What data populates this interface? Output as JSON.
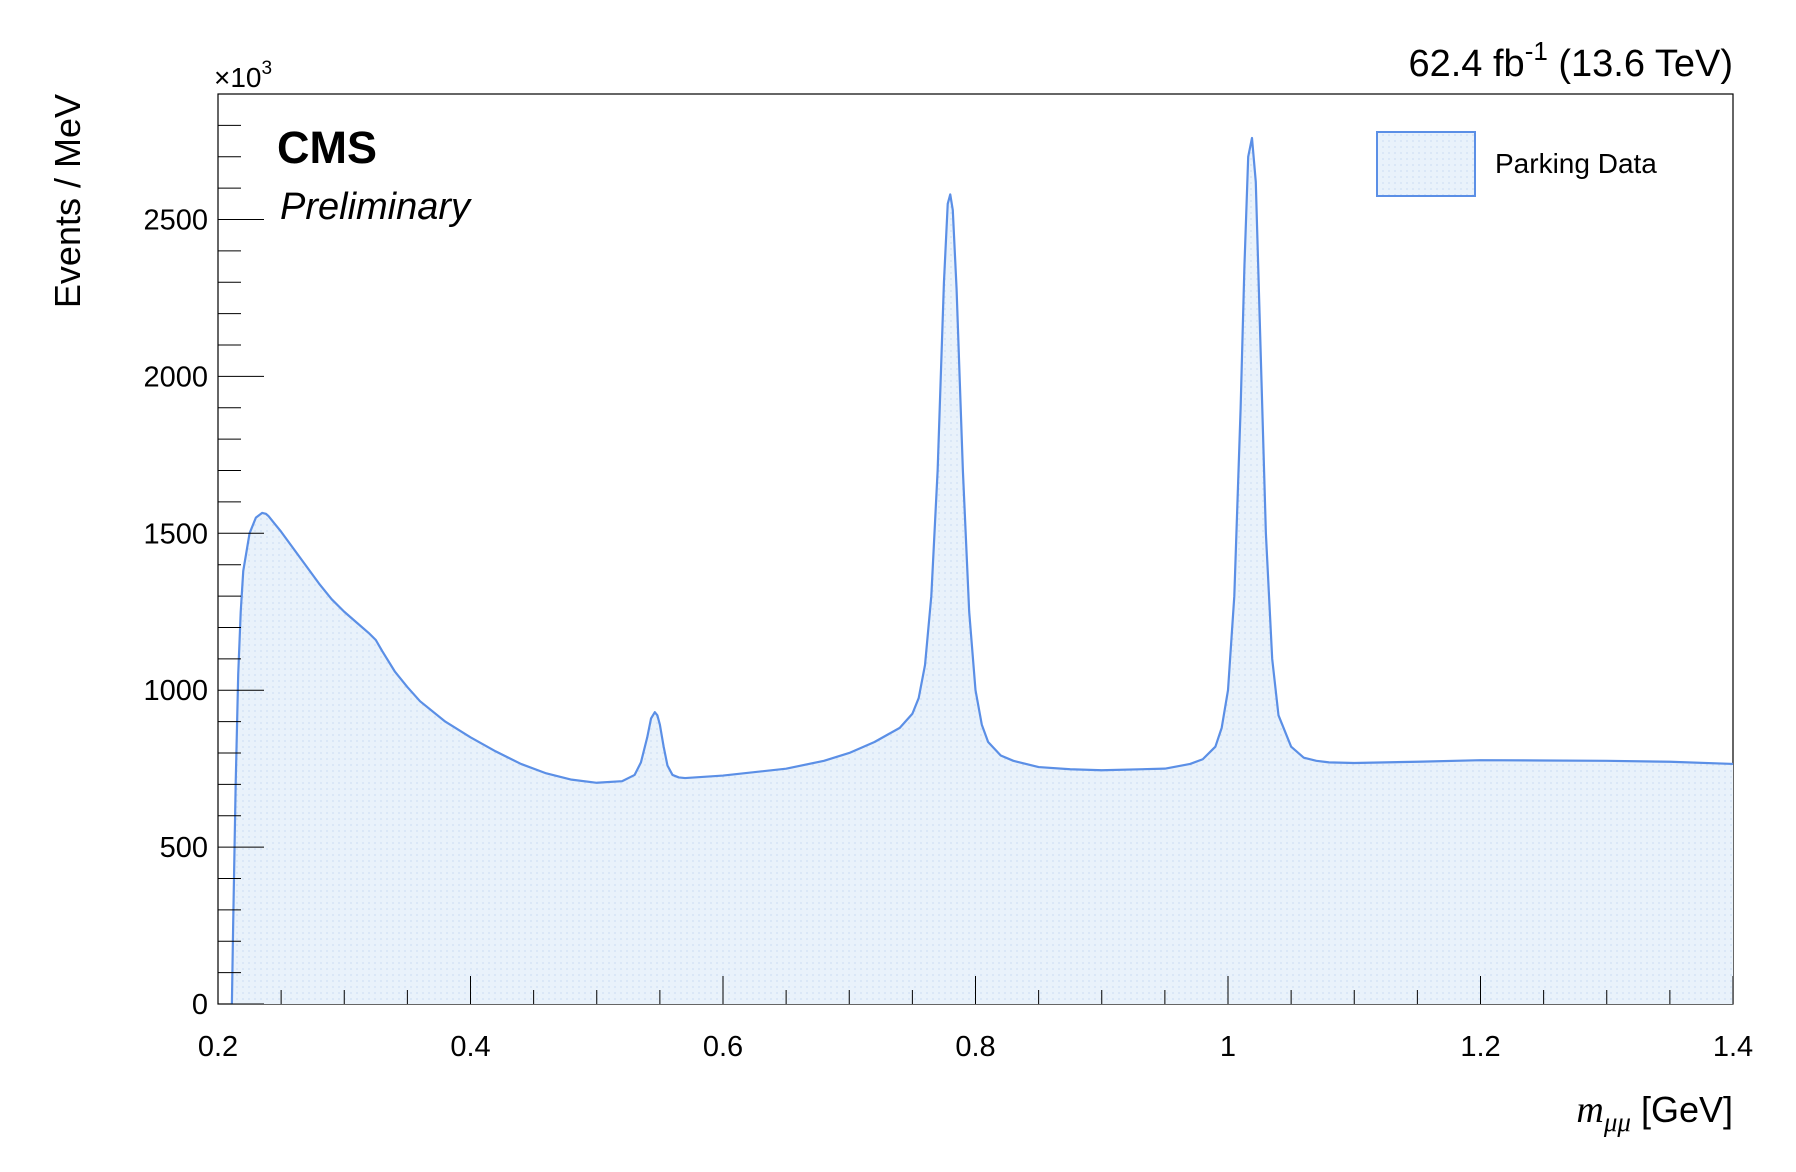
{
  "chart_data": {
    "type": "area",
    "experiment_label": "CMS",
    "status_label": "Preliminary",
    "lumi_value": "62.4 fb",
    "lumi_exponent": "-1",
    "lumi_energy": " (13.6 TeV)",
    "ylabel": "Events / MeV",
    "yscale_base": "×10",
    "yscale_exponent": "3",
    "xlabel_var": "m",
    "xlabel_sub": "μμ",
    "xlabel_unit": " [GeV]",
    "xlim": [
      0.2,
      1.4
    ],
    "ylim": [
      0,
      2900
    ],
    "grid": false,
    "legend_position": "top-right",
    "x_ticks": [
      {
        "value": 0.2,
        "label": "0.2"
      },
      {
        "value": 0.4,
        "label": "0.4"
      },
      {
        "value": 0.6,
        "label": "0.6"
      },
      {
        "value": 0.8,
        "label": "0.8"
      },
      {
        "value": 1.0,
        "label": "1"
      },
      {
        "value": 1.2,
        "label": "1.2"
      },
      {
        "value": 1.4,
        "label": "1.4"
      }
    ],
    "y_ticks": [
      {
        "value": 0,
        "label": "0"
      },
      {
        "value": 500,
        "label": "500"
      },
      {
        "value": 1000,
        "label": "1000"
      },
      {
        "value": 1500,
        "label": "1500"
      },
      {
        "value": 2000,
        "label": "2000"
      },
      {
        "value": 2500,
        "label": "2500"
      }
    ],
    "series": [
      {
        "name": "Parking Data",
        "line_color": "#5b8fe6",
        "fill_color": "#e6f0fa",
        "x": [
          0.211,
          0.212,
          0.214,
          0.216,
          0.218,
          0.22,
          0.225,
          0.23,
          0.235,
          0.238,
          0.24,
          0.245,
          0.25,
          0.26,
          0.27,
          0.28,
          0.29,
          0.3,
          0.31,
          0.32,
          0.325,
          0.33,
          0.34,
          0.35,
          0.36,
          0.38,
          0.4,
          0.42,
          0.44,
          0.46,
          0.48,
          0.5,
          0.52,
          0.53,
          0.535,
          0.54,
          0.543,
          0.546,
          0.548,
          0.55,
          0.553,
          0.556,
          0.56,
          0.565,
          0.57,
          0.6,
          0.65,
          0.68,
          0.7,
          0.72,
          0.74,
          0.75,
          0.755,
          0.76,
          0.765,
          0.77,
          0.775,
          0.778,
          0.78,
          0.782,
          0.785,
          0.79,
          0.795,
          0.8,
          0.805,
          0.81,
          0.82,
          0.83,
          0.85,
          0.875,
          0.9,
          0.95,
          0.97,
          0.98,
          0.99,
          0.995,
          1.0,
          1.005,
          1.01,
          1.013,
          1.016,
          1.019,
          1.022,
          1.025,
          1.03,
          1.035,
          1.04,
          1.05,
          1.06,
          1.07,
          1.08,
          1.1,
          1.15,
          1.2,
          1.25,
          1.3,
          1.35,
          1.4
        ],
        "y": [
          0,
          250,
          700,
          1050,
          1250,
          1380,
          1500,
          1550,
          1565,
          1562,
          1555,
          1530,
          1505,
          1450,
          1395,
          1340,
          1290,
          1250,
          1215,
          1180,
          1160,
          1125,
          1060,
          1010,
          965,
          900,
          850,
          805,
          765,
          735,
          715,
          705,
          710,
          730,
          770,
          850,
          910,
          930,
          920,
          890,
          820,
          760,
          730,
          722,
          720,
          728,
          750,
          775,
          800,
          835,
          880,
          925,
          975,
          1080,
          1300,
          1700,
          2300,
          2550,
          2580,
          2530,
          2280,
          1700,
          1250,
          1000,
          890,
          835,
          792,
          775,
          755,
          748,
          745,
          750,
          765,
          780,
          820,
          880,
          1000,
          1300,
          1900,
          2350,
          2700,
          2760,
          2620,
          2200,
          1500,
          1100,
          920,
          820,
          785,
          775,
          770,
          768,
          772,
          777,
          776,
          775,
          772,
          765
        ]
      }
    ]
  }
}
